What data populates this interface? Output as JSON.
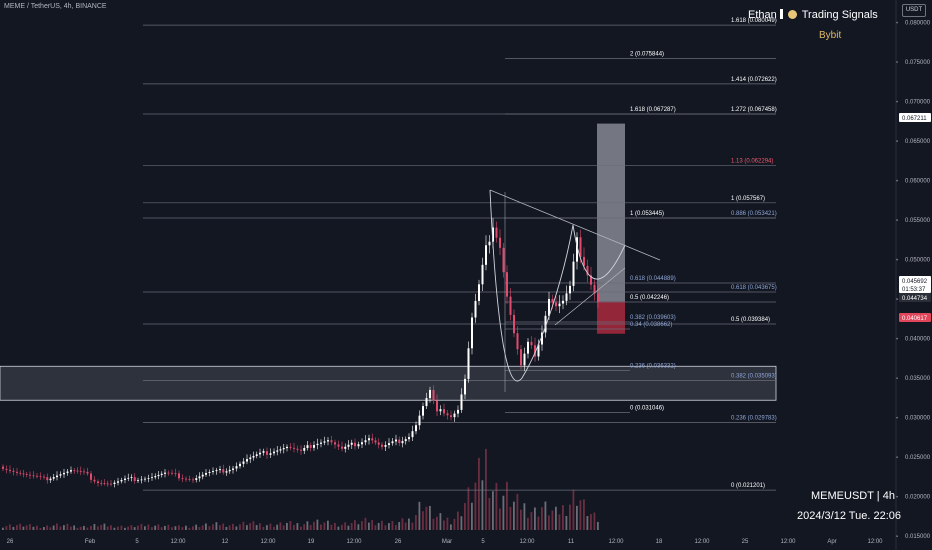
{
  "header": {
    "symbol_line": "MEME / TetherUS, 4h, BINANCE"
  },
  "branding": {
    "author_prefix": "Ethan",
    "author_suffix": "Trading Signals",
    "exchange": "Bybit"
  },
  "watermark": {
    "pair": "MEMEUSDT | 4h",
    "datetime": "2024/3/12 Tue. 22:06"
  },
  "currency_button": "USDT",
  "colors": {
    "background": "#131722",
    "up": "#ffffff",
    "down": "#e04b6e",
    "grid_line": "#5d606b",
    "axis_text": "#b2b5be",
    "fib_blue": "#8fa6d6",
    "fib_red": "#f05a6e",
    "target_zone": "#9598a1",
    "stop_zone": "#a3283d",
    "current_price_bg": "#e0455a"
  },
  "chart_data": {
    "type": "candlestick",
    "symbol": "MEME / TetherUS",
    "interval": "4h",
    "exchange": "BINANCE",
    "y_axis": {
      "ticks": [
        "0.080000",
        "0.075000",
        "0.070000",
        "0.065000",
        "0.060000",
        "0.055000",
        "0.050000",
        "0.045000",
        "0.040000",
        "0.035000",
        "0.030000",
        "0.025000",
        "0.020000",
        "0.015000"
      ],
      "range": [
        0.0135,
        0.0826
      ]
    },
    "x_axis": {
      "ticks": [
        "26",
        "Feb",
        "5",
        "12:00",
        "12",
        "12:00",
        "19",
        "12:00",
        "26",
        "Mar",
        "5",
        "12:00",
        "11",
        "12:00",
        "18",
        "12:00",
        "25",
        "12:00",
        "Apr",
        "12:00"
      ]
    },
    "price_labels": [
      {
        "text": "0.067211",
        "value": 0.067211,
        "style": "white"
      },
      {
        "text": "0.045692",
        "value": 0.045692,
        "style": "white"
      },
      {
        "text": "01:53:37",
        "value": 0.04466,
        "style": "white"
      },
      {
        "text": "0.044734",
        "value": 0.044734,
        "style": "dark"
      },
      {
        "text": "0.040617",
        "value": 0.040617,
        "style": "red"
      }
    ],
    "fib_levels": [
      {
        "label": "1.618 (0.080049)",
        "value": 0.080049,
        "color": "white"
      },
      {
        "label": "2 (0.075844)",
        "value": 0.075844,
        "color": "white"
      },
      {
        "label": "1.414 (0.072622)",
        "value": 0.072622,
        "color": "white"
      },
      {
        "label": "1.618 (0.067287)",
        "value": 0.067287,
        "color": "white"
      },
      {
        "label": "1.272 (0.067458)",
        "value": 0.067458,
        "color": "white"
      },
      {
        "label": "1.13 (0.062294)",
        "value": 0.062294,
        "color": "red"
      },
      {
        "label": "1 (0.057567)",
        "value": 0.057567,
        "color": "white"
      },
      {
        "label": "1 (0.053445)",
        "value": 0.053445,
        "color": "white"
      },
      {
        "label": "0.886 (0.053421)",
        "value": 0.053421,
        "color": "blue"
      },
      {
        "label": "0.618 (0.044889)",
        "value": 0.044889,
        "color": "blue"
      },
      {
        "label": "0.618 (0.043675)",
        "value": 0.043675,
        "color": "blue"
      },
      {
        "label": "0.5 (0.042246)",
        "value": 0.042246,
        "color": "white"
      },
      {
        "label": "0.382 (0.039603)",
        "value": 0.039603,
        "color": "blue"
      },
      {
        "label": "0.5 (0.039384)",
        "value": 0.039384,
        "color": "white"
      },
      {
        "label": "0.34 (0.038662)",
        "value": 0.038662,
        "color": "blue"
      },
      {
        "label": "0.236 (0.036332)",
        "value": 0.036332,
        "color": "blue"
      },
      {
        "label": "0.382 (0.035093)",
        "value": 0.035093,
        "color": "blue"
      },
      {
        "label": "0 (0.031046)",
        "value": 0.031046,
        "color": "white"
      },
      {
        "label": "0.236 (0.029783)",
        "value": 0.029783,
        "color": "blue"
      },
      {
        "label": "0 (0.021201)",
        "value": 0.021201,
        "color": "white"
      }
    ],
    "support_zone": {
      "low": 0.0322,
      "high": 0.0365
    },
    "target_zone": {
      "low": 0.0447,
      "high": 0.067211
    },
    "stop_zone": {
      "low": 0.040617,
      "high": 0.0447
    },
    "price_series": [
      [
        0,
        0.0238
      ],
      [
        14,
        0.0231
      ],
      [
        27,
        0.0226
      ],
      [
        41,
        0.0222
      ],
      [
        54,
        0.0228
      ],
      [
        68,
        0.0233
      ],
      [
        81,
        0.0229
      ],
      [
        95,
        0.0219
      ],
      [
        108,
        0.0216
      ],
      [
        122,
        0.0221
      ],
      [
        135,
        0.0223
      ],
      [
        149,
        0.0225
      ],
      [
        162,
        0.0229
      ],
      [
        176,
        0.0226
      ],
      [
        190,
        0.0222
      ],
      [
        203,
        0.0229
      ],
      [
        217,
        0.0232
      ],
      [
        230,
        0.0237
      ],
      [
        244,
        0.0247
      ],
      [
        257,
        0.0253
      ],
      [
        271,
        0.0259
      ],
      [
        284,
        0.0263
      ],
      [
        298,
        0.0256
      ],
      [
        311,
        0.0268
      ],
      [
        325,
        0.0272
      ],
      [
        339,
        0.0259
      ],
      [
        352,
        0.0267
      ],
      [
        366,
        0.0275
      ],
      [
        379,
        0.0262
      ],
      [
        393,
        0.0269
      ],
      [
        406,
        0.0277
      ],
      [
        413,
        0.0291
      ],
      [
        420,
        0.0314
      ],
      [
        427,
        0.0333
      ],
      [
        434,
        0.0305
      ],
      [
        441,
        0.0309
      ],
      [
        448,
        0.0303
      ],
      [
        455,
        0.0311
      ],
      [
        462,
        0.0349
      ],
      [
        469,
        0.0425
      ],
      [
        476,
        0.0465
      ],
      [
        483,
        0.0512
      ],
      [
        490,
        0.0546
      ],
      [
        497,
        0.0518
      ],
      [
        504,
        0.0454
      ],
      [
        511,
        0.0406
      ],
      [
        518,
        0.0364
      ],
      [
        525,
        0.0392
      ],
      [
        532,
        0.0382
      ],
      [
        539,
        0.0411
      ],
      [
        546,
        0.0452
      ],
      [
        553,
        0.0441
      ],
      [
        560,
        0.0446
      ],
      [
        567,
        0.0463
      ],
      [
        574,
        0.0522
      ],
      [
        581,
        0.0497
      ],
      [
        588,
        0.0471
      ],
      [
        595,
        0.0447
      ]
    ],
    "volume_series": [
      [
        0,
        5
      ],
      [
        14,
        6
      ],
      [
        27,
        5
      ],
      [
        41,
        4
      ],
      [
        54,
        6
      ],
      [
        68,
        5
      ],
      [
        81,
        4
      ],
      [
        95,
        6
      ],
      [
        108,
        5
      ],
      [
        122,
        4
      ],
      [
        135,
        5
      ],
      [
        149,
        6
      ],
      [
        162,
        5
      ],
      [
        176,
        4
      ],
      [
        190,
        5
      ],
      [
        203,
        6
      ],
      [
        217,
        7
      ],
      [
        230,
        6
      ],
      [
        244,
        8
      ],
      [
        257,
        7
      ],
      [
        271,
        6
      ],
      [
        284,
        8
      ],
      [
        298,
        7
      ],
      [
        311,
        10
      ],
      [
        325,
        8
      ],
      [
        339,
        7
      ],
      [
        352,
        9
      ],
      [
        366,
        11
      ],
      [
        379,
        9
      ],
      [
        393,
        8
      ],
      [
        406,
        12
      ],
      [
        413,
        20
      ],
      [
        420,
        35
      ],
      [
        427,
        22
      ],
      [
        434,
        15
      ],
      [
        441,
        14
      ],
      [
        448,
        12
      ],
      [
        455,
        18
      ],
      [
        462,
        33
      ],
      [
        469,
        45
      ],
      [
        476,
        62
      ],
      [
        483,
        85
      ],
      [
        490,
        52
      ],
      [
        497,
        40
      ],
      [
        504,
        44
      ],
      [
        511,
        32
      ],
      [
        518,
        30
      ],
      [
        525,
        26
      ],
      [
        532,
        22
      ],
      [
        539,
        28
      ],
      [
        546,
        24
      ],
      [
        553,
        20
      ],
      [
        560,
        26
      ],
      [
        567,
        34
      ],
      [
        574,
        45
      ],
      [
        581,
        28
      ],
      [
        588,
        18
      ],
      [
        595,
        12
      ]
    ],
    "pattern": "cup and handle with descending trendline"
  }
}
